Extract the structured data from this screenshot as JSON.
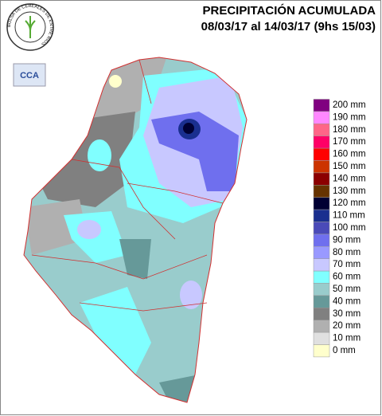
{
  "header": {
    "title": "PRECIPITACIÓN ACUMULADA",
    "subtitle": "08/03/17 al 14/03/17 (9hs 15/03)"
  },
  "logo": {
    "ring_text": "BOLSA DE CEREALES DE ENTRE RIOS",
    "badge": "CCA"
  },
  "legend": [
    {
      "label": "200 mm",
      "color": "#800080"
    },
    {
      "label": "190 mm",
      "color": "#ff88ff"
    },
    {
      "label": "180 mm",
      "color": "#ff6688"
    },
    {
      "label": "170 mm",
      "color": "#ff0066"
    },
    {
      "label": "160 mm",
      "color": "#ff0000"
    },
    {
      "label": "150 mm",
      "color": "#cc3300"
    },
    {
      "label": "140 mm",
      "color": "#8b0000"
    },
    {
      "label": "130 mm",
      "color": "#663300"
    },
    {
      "label": "120 mm",
      "color": "#000033"
    },
    {
      "label": "110 mm",
      "color": "#1a2f8f"
    },
    {
      "label": "100 mm",
      "color": "#4a4ab8"
    },
    {
      "label": "90 mm",
      "color": "#6f6fee"
    },
    {
      "label": "80 mm",
      "color": "#9999ff"
    },
    {
      "label": "70 mm",
      "color": "#c8c8ff"
    },
    {
      "label": "60 mm",
      "color": "#80ffff"
    },
    {
      "label": "50 mm",
      "color": "#99cccc"
    },
    {
      "label": "40 mm",
      "color": "#669999"
    },
    {
      "label": "30 mm",
      "color": "#808080"
    },
    {
      "label": "20 mm",
      "color": "#b0b0b0"
    },
    {
      "label": "10 mm",
      "color": "#e0e0e0"
    },
    {
      "label": "0 mm",
      "color": "#ffffcc"
    }
  ]
}
